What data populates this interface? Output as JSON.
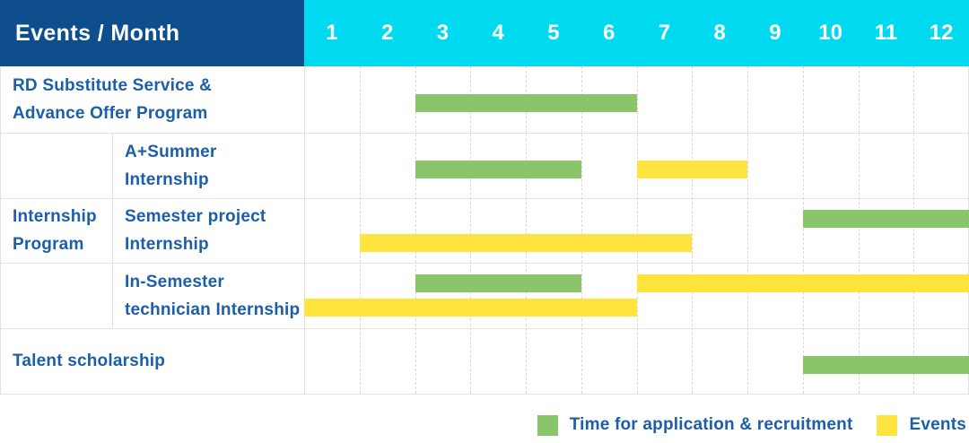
{
  "header": {
    "corner_label": "Events / Month",
    "months": [
      "1",
      "2",
      "3",
      "4",
      "5",
      "6",
      "7",
      "8",
      "9",
      "10",
      "11",
      "12"
    ]
  },
  "legend": {
    "items": [
      {
        "key": "application",
        "label": "Time for application & recruitment",
        "color_key": "green"
      },
      {
        "key": "events",
        "label": "Events",
        "color_key": "yellow"
      }
    ]
  },
  "colors": {
    "header_bg": "#0E4E8C",
    "months_bg": "#00DAF0",
    "header_text": "#FFFFFF",
    "label_text": "#1C5EA9",
    "grid_line": "#E2E2E2",
    "grid_dash": "#D8D8D8",
    "green": "#8BC56A",
    "yellow": "#FFE33E"
  },
  "chart_data": {
    "type": "bar",
    "subtype": "gantt-schedule",
    "title": "Events / Month",
    "x_axis": {
      "label": "Month",
      "ticks": [
        1,
        2,
        3,
        4,
        5,
        6,
        7,
        8,
        9,
        10,
        11,
        12
      ],
      "range": [
        1,
        12
      ]
    },
    "legend_entries": [
      "Time for application & recruitment",
      "Events"
    ],
    "legend_position": "bottom-right",
    "grid": true,
    "group_label": "Internship Program",
    "group_label_lines": [
      "Internship",
      "Program"
    ],
    "rows": [
      {
        "group": "",
        "label": "RD Substitute Service & Advance Offer Program",
        "label_lines": [
          "RD Substitute Service &",
          "Advance Offer Program"
        ],
        "bars": [
          {
            "series": "Time for application & recruitment",
            "color_key": "green",
            "start_month": 3,
            "end_month": 6,
            "lane": "single"
          }
        ]
      },
      {
        "group": "Internship Program",
        "label": "A+Summer Internship",
        "label_lines": [
          "A+Summer",
          "Internship"
        ],
        "bars": [
          {
            "series": "Time for application & recruitment",
            "color_key": "green",
            "start_month": 3,
            "end_month": 5,
            "lane": "single"
          },
          {
            "series": "Events",
            "color_key": "yellow",
            "start_month": 7,
            "end_month": 8,
            "lane": "single"
          }
        ]
      },
      {
        "group": "Internship Program",
        "label": "Semester project Internship",
        "label_lines": [
          "Semester project",
          "Internship"
        ],
        "bars": [
          {
            "series": "Time for application & recruitment",
            "color_key": "green",
            "start_month": 10,
            "end_month": 12,
            "lane": "top"
          },
          {
            "series": "Events",
            "color_key": "yellow",
            "start_month": 2,
            "end_month": 7,
            "lane": "bottom"
          }
        ]
      },
      {
        "group": "Internship Program",
        "label": "In-Semester technician Internship",
        "label_lines": [
          "In-Semester",
          "technician Internship"
        ],
        "bars": [
          {
            "series": "Time for application & recruitment",
            "color_key": "green",
            "start_month": 3,
            "end_month": 5,
            "lane": "top"
          },
          {
            "series": "Events",
            "color_key": "yellow",
            "start_month": 7,
            "end_month": 12,
            "lane": "top"
          },
          {
            "series": "Events",
            "color_key": "yellow",
            "start_month": 1,
            "end_month": 6,
            "lane": "bottom"
          }
        ]
      },
      {
        "group": "",
        "label": "Talent scholarship",
        "label_lines": [
          "Talent scholarship"
        ],
        "bars": [
          {
            "series": "Time for application & recruitment",
            "color_key": "green",
            "start_month": 10,
            "end_month": 12,
            "lane": "single"
          }
        ]
      }
    ]
  }
}
